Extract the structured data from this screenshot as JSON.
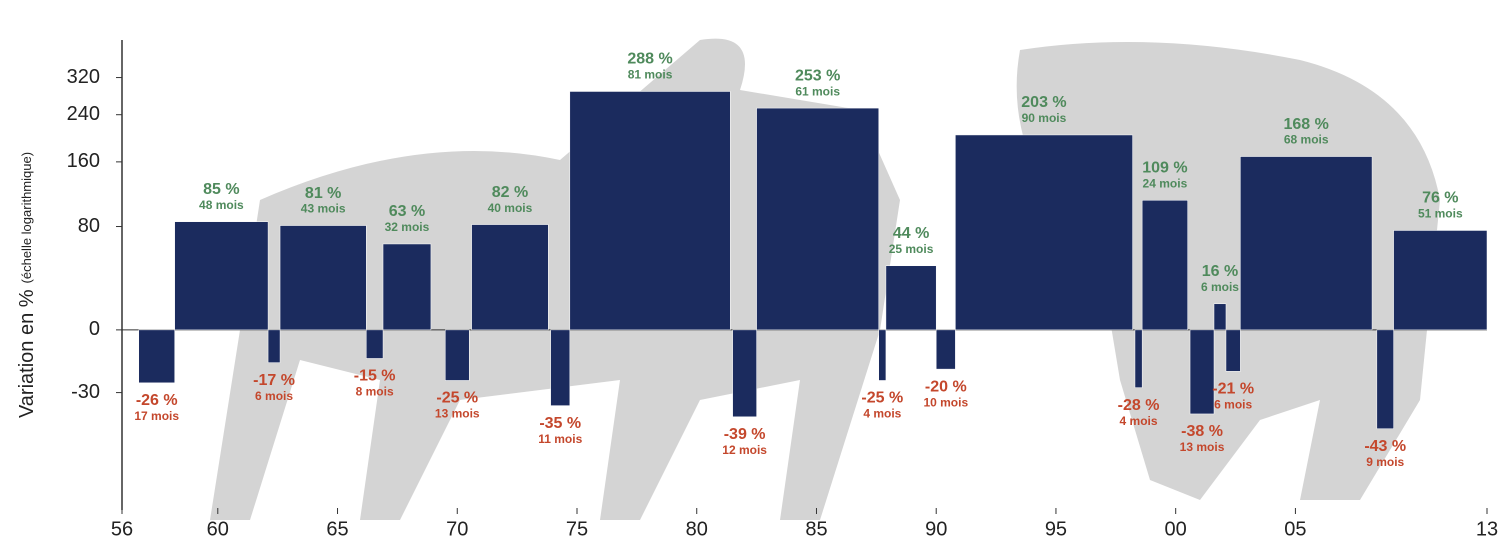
{
  "chart_data": {
    "type": "period-bar",
    "y_label": "Variation en %",
    "y_label_note": "(échelle logarithmique)",
    "yscale": "log",
    "xlim": [
      1956,
      2013
    ],
    "xticks": [
      {
        "value": 1956,
        "label": "56"
      },
      {
        "value": 1960,
        "label": "60"
      },
      {
        "value": 1965,
        "label": "65"
      },
      {
        "value": 1970,
        "label": "70"
      },
      {
        "value": 1975,
        "label": "75"
      },
      {
        "value": 1980,
        "label": "80"
      },
      {
        "value": 1985,
        "label": "85"
      },
      {
        "value": 1990,
        "label": "90"
      },
      {
        "value": 1995,
        "label": "95"
      },
      {
        "value": 2000,
        "label": "00"
      },
      {
        "value": 2005,
        "label": "05"
      },
      {
        "value": 2013,
        "label": "13"
      }
    ],
    "ylim": [
      -62,
      420
    ],
    "yticks": [
      -30,
      0,
      80,
      160,
      240,
      320
    ],
    "bar_color": "#1b2b5e",
    "gain_color": "#4f8a5c",
    "loss_color": "#c4472c",
    "x_start": [
      1956.7,
      1958.2,
      1962.1,
      1962.6,
      1966.2,
      1966.9,
      1969.5,
      1970.6,
      1973.9,
      1974.7,
      1981.5,
      1982.5,
      1987.6,
      1987.9,
      1990.0,
      1990.8,
      1998.3,
      1998.6,
      2000.6,
      2001.6,
      2002.1,
      2002.7,
      2008.4,
      2009.1
    ],
    "x_end": [
      1958.2,
      1962.1,
      1962.6,
      1966.2,
      1966.9,
      1968.9,
      1970.5,
      1973.8,
      1974.7,
      1981.4,
      1982.5,
      1987.6,
      1987.9,
      1990.0,
      1990.8,
      1998.2,
      1998.6,
      2000.5,
      2001.6,
      2002.1,
      2002.7,
      2008.2,
      2009.1,
      2013
    ],
    "values": [
      -26,
      85,
      -17,
      81,
      -15,
      63,
      -25,
      82,
      -35,
      288,
      -39,
      253,
      -25,
      44,
      -20,
      203,
      -28,
      109,
      -38,
      16,
      -21,
      168,
      -43,
      76
    ],
    "value_labels": [
      "-26 %",
      "85 %",
      "-17 %",
      "81 %",
      "-15 %",
      "63 %",
      "-25 %",
      "82 %",
      "-35 %",
      "288 %",
      "-39 %",
      "253 %",
      "-25 %",
      "44 %",
      "-20 %",
      "203 %",
      "-28 %",
      "109 %",
      "-38 %",
      "16 %",
      "-21 %",
      "168 %",
      "-43 %",
      "76 %"
    ],
    "months_labels": [
      "17 mois",
      "48 mois",
      "6 mois",
      "43 mois",
      "8 mois",
      "32 mois",
      "13 mois",
      "40 mois",
      "11 mois",
      "81 mois",
      "12 mois",
      "61 mois",
      "4 mois",
      "25 mois",
      "10 mois",
      "90 mois",
      "4 mois",
      "24 mois",
      "13 mois",
      "6 mois",
      "6 mois",
      "68 mois",
      "9 mois",
      "51 mois"
    ]
  }
}
